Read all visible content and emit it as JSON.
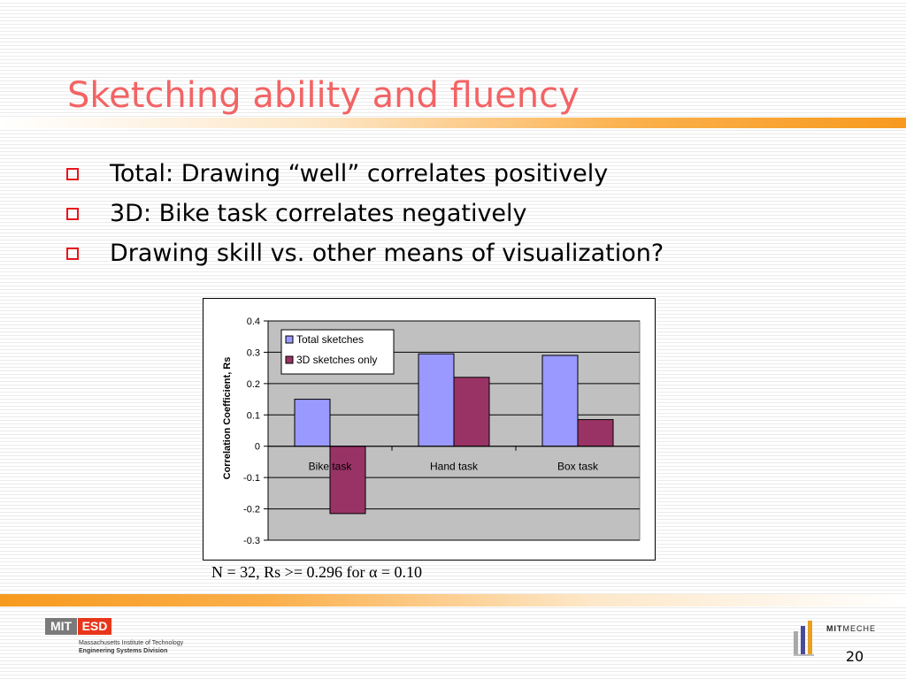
{
  "slide": {
    "title": "Sketching ability and fluency",
    "bullets": [
      "Total: Drawing “well” correlates positively",
      "3D: Bike task correlates negatively",
      "Drawing skill vs. other means of visualization?"
    ],
    "note_prefix": "N = 32, Rs >= 0.296 for ",
    "note_symbol": "α",
    "note_suffix": " = 0.10",
    "page_number": "20"
  },
  "footer": {
    "mit_label": "MIT",
    "esd_label": "ESD",
    "institute": "Massachusetts Institute of Technology",
    "division": "Engineering Systems Division",
    "meche_prefix": "MIT",
    "meche_suffix": "MECHE"
  },
  "colors": {
    "title": "#f26465",
    "bullet_marker": "#e8141a",
    "series_total": "#9999ff",
    "series_3d": "#993366",
    "plot_area": "#c0c0c0"
  },
  "chart_data": {
    "type": "bar",
    "categories": [
      "Bike task",
      "Hand task",
      "Box task"
    ],
    "series": [
      {
        "name": "Total sketches",
        "values": [
          0.15,
          0.295,
          0.29
        ],
        "color": "#9999ff"
      },
      {
        "name": "3D sketches only",
        "values": [
          -0.215,
          0.22,
          0.085
        ],
        "color": "#993366"
      }
    ],
    "ylabel": "Correlation Coefficient, Rs",
    "ylim": [
      -0.3,
      0.4
    ],
    "yticks": [
      0.4,
      0.3,
      0.2,
      0.1,
      0,
      -0.1,
      -0.2,
      -0.3
    ],
    "ytick_labels": [
      "0.4",
      "0.3",
      "0.2",
      "0.1",
      "0",
      "-0.1",
      "-0.2",
      "-0.3"
    ],
    "grid": true,
    "legend_position": "top-center"
  }
}
